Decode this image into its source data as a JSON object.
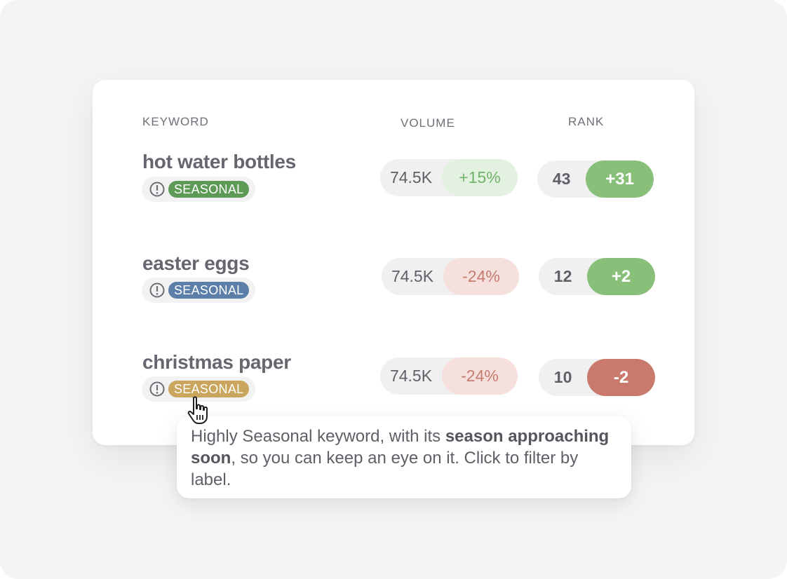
{
  "columns": {
    "keyword": "KEYWORD",
    "volume": "VOLUME",
    "rank": "RANK"
  },
  "rows": [
    {
      "keyword": "hot water bottles",
      "label": "SEASONAL",
      "label_color": "#5d9a56",
      "volume": "74.5K",
      "volume_change": "+15%",
      "volume_change_bg": "#e3f2e0",
      "volume_change_color": "#72b36b",
      "rank": "43",
      "rank_change": "+31",
      "rank_change_bg": "#88bf79"
    },
    {
      "keyword": "easter eggs",
      "label": "SEASONAL",
      "label_color": "#5c7fa9",
      "volume": "74.5K",
      "volume_change": "-24%",
      "volume_change_bg": "#f6e0dd",
      "volume_change_color": "#c57b6e",
      "rank": "12",
      "rank_change": "+2",
      "rank_change_bg": "#88bf79"
    },
    {
      "keyword": "christmas paper",
      "label": "SEASONAL",
      "label_color": "#c9a55d",
      "volume": "74.5K",
      "volume_change": "-24%",
      "volume_change_bg": "#f6e0dd",
      "volume_change_color": "#c57b6e",
      "rank": "10",
      "rank_change": "-2",
      "rank_change_bg": "#c97a6c"
    }
  ],
  "tooltip": {
    "part1": "Highly Seasonal keyword, with its ",
    "bold": "season approaching soon",
    "part2": ", so you can keep an eye on it. Click to filter by label."
  },
  "icons": {
    "label_icon": "alert-circle-icon",
    "cursor": "pointer-hand-icon"
  }
}
